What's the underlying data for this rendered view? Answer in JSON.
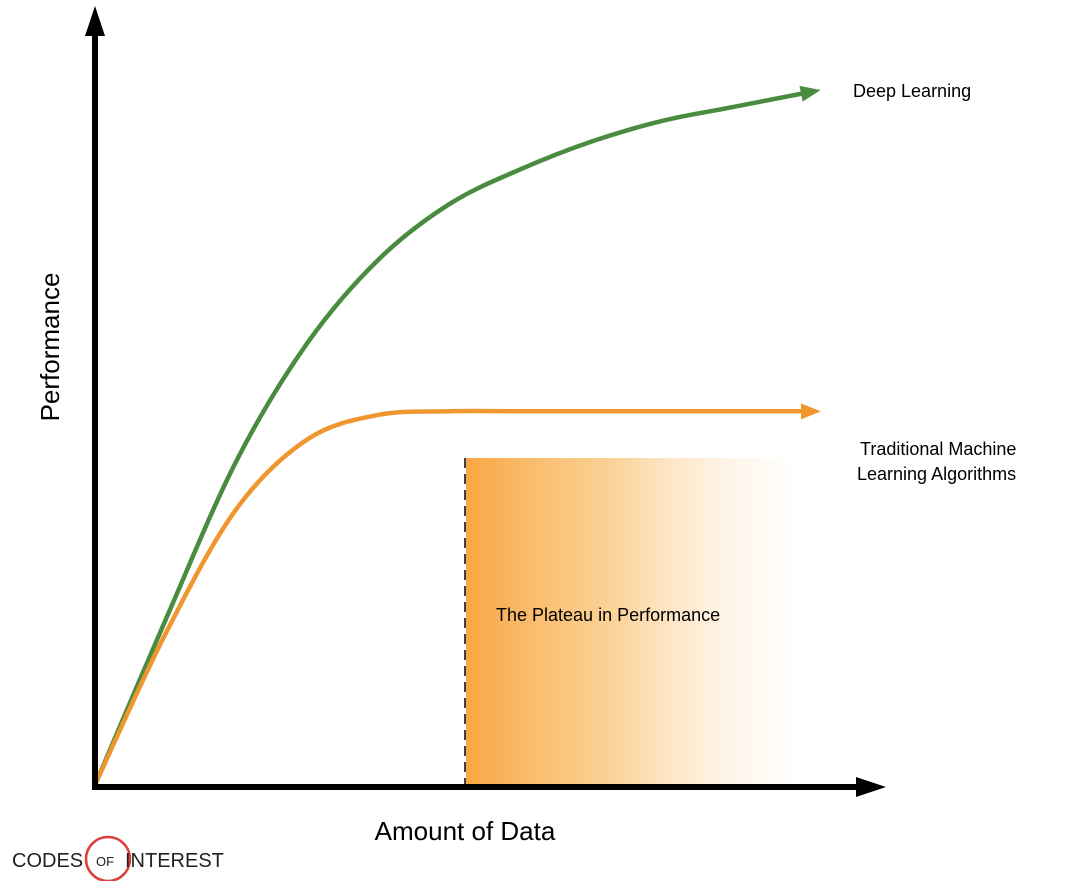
{
  "chart_data": {
    "type": "line",
    "title": "",
    "xlabel": "Amount of Data",
    "ylabel": "Performance",
    "xlim": [
      0,
      1
    ],
    "ylim": [
      0,
      1
    ],
    "grid": false,
    "series": [
      {
        "name": "Deep Learning",
        "color": "#4a8c3f",
        "x": [
          0,
          0.1,
          0.2,
          0.3,
          0.4,
          0.5,
          0.6,
          0.7,
          0.8,
          0.9,
          1.0
        ],
        "y": [
          0,
          0.24,
          0.47,
          0.64,
          0.76,
          0.84,
          0.89,
          0.93,
          0.96,
          0.98,
          1.0
        ]
      },
      {
        "name": "Traditional Machine\nLearning Algorithms",
        "color": "#f0962e",
        "x": [
          0,
          0.1,
          0.2,
          0.3,
          0.4,
          0.5,
          0.6,
          0.7,
          0.8,
          0.9,
          1.0
        ],
        "y": [
          0,
          0.22,
          0.4,
          0.5,
          0.535,
          0.54,
          0.54,
          0.54,
          0.54,
          0.54,
          0.54
        ]
      }
    ],
    "annotations": [
      {
        "text": "The Plateau in Performance",
        "x_start": 0.51,
        "x_end": 1.0,
        "color": "#f7a23a"
      }
    ]
  },
  "watermark": {
    "codes": "CODES",
    "of": "OF",
    "interest": "INTEREST",
    "ring_color": "#d9413a"
  }
}
